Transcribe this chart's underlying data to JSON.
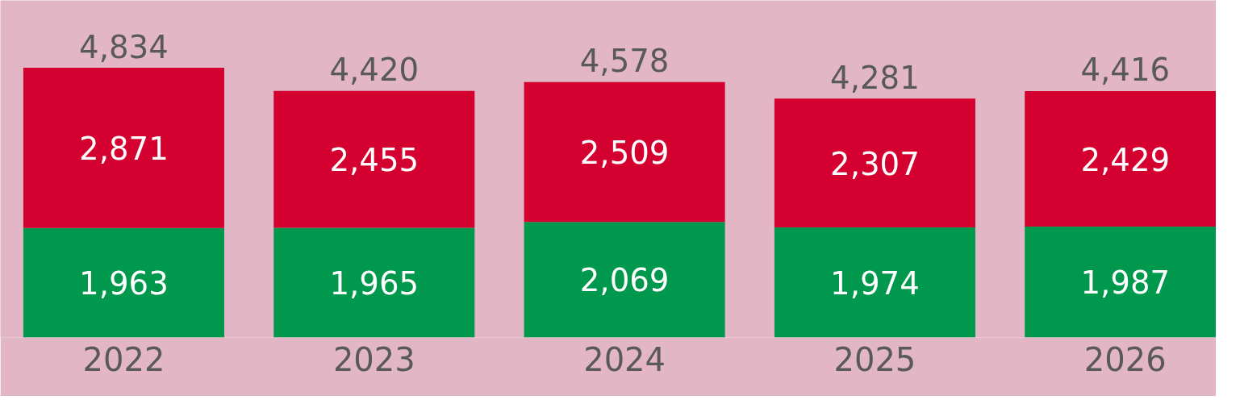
{
  "chart_data": {
    "type": "bar",
    "stacked": true,
    "categories": [
      "2022",
      "2023",
      "2024",
      "2025",
      "2026"
    ],
    "series": [
      {
        "color": "#00984c",
        "values": [
          1963,
          1965,
          2069,
          1974,
          1987
        ],
        "value_labels": [
          "1,963",
          "1,965",
          "2,069",
          "1,974",
          "1,987"
        ]
      },
      {
        "color": "#d4002f",
        "values": [
          2871,
          2455,
          2509,
          2307,
          2429
        ],
        "value_labels": [
          "2,871",
          "2,455",
          "2,509",
          "2,307",
          "2,429"
        ]
      }
    ],
    "totals": [
      "4,834",
      "4,420",
      "4,578",
      "4,281",
      "4,416"
    ],
    "tick_labels": "x"
  }
}
